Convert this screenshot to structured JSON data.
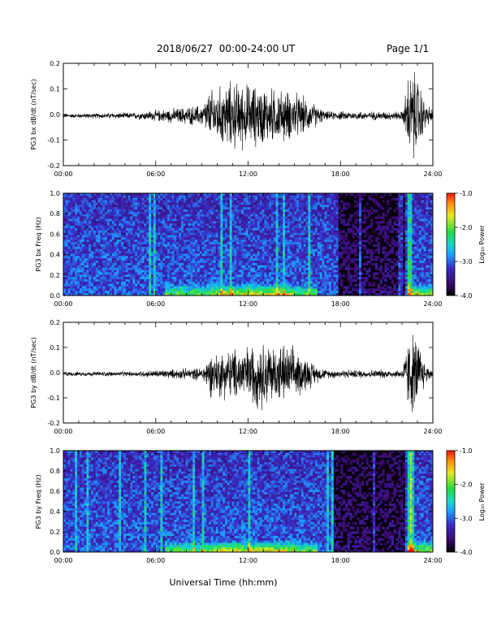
{
  "header": {
    "title": "2018/06/27  00:00-24:00 UT",
    "page": "Page 1/1"
  },
  "footer": {
    "xlabel": "Universal Time (hh:mm)"
  },
  "colorbar_label": "Log₁₀ Power",
  "colors": {
    "signal": "#000000",
    "spec_bg": "#0a0010"
  },
  "chart_data": [
    {
      "type": "line",
      "name": "bx-waveform",
      "ylabel": "PG3 bx dB/dt (nT/sec)",
      "xlim": [
        0,
        24
      ],
      "ylim": [
        -0.2,
        0.2
      ],
      "x_ticks": [
        "00:00",
        "06:00",
        "12:00",
        "18:00",
        "24:00"
      ],
      "y_ticks": [
        "-0.2",
        "-0.1",
        "0.0",
        "0.1",
        "0.2"
      ],
      "envelope": {
        "hours": [
          0,
          4.5,
          6.5,
          9,
          9.5,
          11,
          13,
          15,
          16.5,
          17,
          22,
          22.5,
          23,
          23.5,
          24
        ],
        "amplitude": [
          0.01,
          0.015,
          0.03,
          0.05,
          0.12,
          0.16,
          0.14,
          0.11,
          0.05,
          0.02,
          0.02,
          0.22,
          0.2,
          0.06,
          0.03
        ]
      }
    },
    {
      "type": "heatmap",
      "name": "bx-spectrogram",
      "ylabel": "PG3 bx Freq (Hz)",
      "xlim": [
        0,
        24
      ],
      "ylim": [
        0,
        1.0
      ],
      "x_ticks": [
        "00:00",
        "06:00",
        "12:00",
        "18:00",
        "24:00"
      ],
      "y_ticks": [
        "0.0",
        "0.2",
        "0.4",
        "0.6",
        "0.8",
        "1.0"
      ],
      "colorbar": {
        "min": -4.0,
        "max": -1.0,
        "ticks": [
          "-1.0",
          "-2.0",
          "-3.0",
          "-4.0"
        ]
      }
    },
    {
      "type": "line",
      "name": "by-waveform",
      "ylabel": "PG3 by dB/dt (nT/sec)",
      "xlim": [
        0,
        24
      ],
      "ylim": [
        -0.2,
        0.2
      ],
      "x_ticks": [
        "00:00",
        "06:00",
        "12:00",
        "18:00",
        "24:00"
      ],
      "y_ticks": [
        "-0.2",
        "-0.1",
        "0.0",
        "0.1",
        "0.2"
      ],
      "envelope": {
        "hours": [
          0,
          4.5,
          6.5,
          9,
          9.5,
          11,
          13,
          15,
          16.5,
          17,
          22,
          22.5,
          23,
          23.5,
          24
        ],
        "amplitude": [
          0.01,
          0.012,
          0.02,
          0.03,
          0.1,
          0.12,
          0.16,
          0.12,
          0.04,
          0.02,
          0.02,
          0.2,
          0.18,
          0.05,
          0.02
        ]
      }
    },
    {
      "type": "heatmap",
      "name": "by-spectrogram",
      "ylabel": "PG3 by Freq (Hz)",
      "xlim": [
        0,
        24
      ],
      "ylim": [
        0,
        1.0
      ],
      "x_ticks": [
        "00:00",
        "06:00",
        "12:00",
        "18:00",
        "24:00"
      ],
      "y_ticks": [
        "0.0",
        "0.2",
        "0.4",
        "0.6",
        "0.8",
        "1.0"
      ],
      "colorbar": {
        "min": -4.0,
        "max": -1.0,
        "ticks": [
          "-1.0",
          "-2.0",
          "-3.0",
          "-4.0"
        ]
      }
    }
  ]
}
